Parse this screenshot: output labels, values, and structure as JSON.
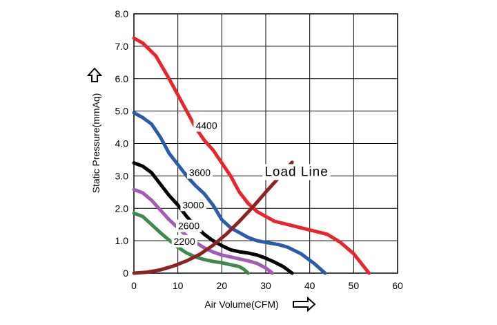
{
  "chart_data": {
    "type": "line",
    "xlabel": "Air Volume(CFM)",
    "ylabel": "Static Pressure(mmAq)",
    "xlim": [
      0,
      60
    ],
    "ylim": [
      0,
      8
    ],
    "x_ticks": [
      "0",
      "10",
      "20",
      "30",
      "40",
      "50",
      "60"
    ],
    "y_ticks": [
      "0",
      "1.0",
      "2.0",
      "3.0",
      "4.0",
      "5.0",
      "6.0",
      "7.0",
      "8.0"
    ],
    "grid": true,
    "series": [
      {
        "name": "4400",
        "color": "#e8262a",
        "points": [
          [
            0,
            7.25
          ],
          [
            2,
            7.1
          ],
          [
            5,
            6.7
          ],
          [
            8,
            6.0
          ],
          [
            10,
            5.5
          ],
          [
            12,
            5.0
          ],
          [
            14,
            4.5
          ],
          [
            16,
            4.1
          ],
          [
            18,
            3.8
          ],
          [
            20,
            3.4
          ],
          [
            22,
            3.0
          ],
          [
            24,
            2.5
          ],
          [
            26,
            2.15
          ],
          [
            28,
            1.9
          ],
          [
            30,
            1.75
          ],
          [
            32,
            1.6
          ],
          [
            35,
            1.5
          ],
          [
            38,
            1.4
          ],
          [
            41,
            1.3
          ],
          [
            44,
            1.2
          ],
          [
            47,
            0.95
          ],
          [
            50,
            0.6
          ],
          [
            53.5,
            0.0
          ]
        ]
      },
      {
        "name": "3600",
        "color": "#2a5cab",
        "points": [
          [
            0,
            4.95
          ],
          [
            2,
            4.8
          ],
          [
            4,
            4.6
          ],
          [
            6,
            4.2
          ],
          [
            8,
            3.7
          ],
          [
            10,
            3.35
          ],
          [
            12,
            3.0
          ],
          [
            14,
            2.7
          ],
          [
            16,
            2.45
          ],
          [
            18,
            2.1
          ],
          [
            20,
            1.65
          ],
          [
            22,
            1.4
          ],
          [
            24,
            1.25
          ],
          [
            26,
            1.1
          ],
          [
            28,
            1.0
          ],
          [
            30,
            0.95
          ],
          [
            33,
            0.88
          ],
          [
            35,
            0.8
          ],
          [
            38,
            0.6
          ],
          [
            41,
            0.3
          ],
          [
            43.5,
            0.0
          ]
        ]
      },
      {
        "name": "3000",
        "color": "#000000",
        "points": [
          [
            0,
            3.4
          ],
          [
            2,
            3.3
          ],
          [
            4,
            3.1
          ],
          [
            6,
            2.75
          ],
          [
            8,
            2.4
          ],
          [
            10,
            2.1
          ],
          [
            12,
            1.75
          ],
          [
            14,
            1.45
          ],
          [
            16,
            1.2
          ],
          [
            18,
            1.0
          ],
          [
            20,
            0.85
          ],
          [
            22,
            0.72
          ],
          [
            24,
            0.66
          ],
          [
            26,
            0.62
          ],
          [
            28,
            0.56
          ],
          [
            30,
            0.46
          ],
          [
            32,
            0.34
          ],
          [
            34,
            0.2
          ],
          [
            36,
            0.0
          ]
        ]
      },
      {
        "name": "2600",
        "color": "#a35bb5",
        "points": [
          [
            0,
            2.58
          ],
          [
            2,
            2.48
          ],
          [
            4,
            2.25
          ],
          [
            6,
            1.95
          ],
          [
            8,
            1.65
          ],
          [
            10,
            1.4
          ],
          [
            12,
            1.15
          ],
          [
            14,
            0.95
          ],
          [
            16,
            0.78
          ],
          [
            18,
            0.65
          ],
          [
            20,
            0.56
          ],
          [
            22,
            0.5
          ],
          [
            24,
            0.44
          ],
          [
            26,
            0.38
          ],
          [
            28,
            0.3
          ],
          [
            30,
            0.16
          ],
          [
            31.5,
            0.0
          ]
        ]
      },
      {
        "name": "2200",
        "color": "#3e8a4e",
        "points": [
          [
            0,
            1.85
          ],
          [
            2,
            1.75
          ],
          [
            4,
            1.5
          ],
          [
            6,
            1.25
          ],
          [
            8,
            1.02
          ],
          [
            10,
            0.8
          ],
          [
            12,
            0.62
          ],
          [
            14,
            0.5
          ],
          [
            16,
            0.42
          ],
          [
            18,
            0.36
          ],
          [
            20,
            0.32
          ],
          [
            22,
            0.26
          ],
          [
            24,
            0.2
          ],
          [
            25,
            0.12
          ],
          [
            26,
            0.0
          ]
        ]
      },
      {
        "name": "Load Line",
        "color": "#8b2323",
        "points": [
          [
            0,
            0.0
          ],
          [
            3,
            0.03
          ],
          [
            6,
            0.1
          ],
          [
            9,
            0.22
          ],
          [
            12,
            0.38
          ],
          [
            15,
            0.58
          ],
          [
            18,
            0.86
          ],
          [
            21,
            1.2
          ],
          [
            24,
            1.6
          ],
          [
            27,
            2.03
          ],
          [
            30,
            2.5
          ],
          [
            33,
            2.95
          ],
          [
            36,
            3.42
          ]
        ]
      }
    ],
    "curve_labels": [
      {
        "text": "4400",
        "at": [
          16.5,
          4.45
        ]
      },
      {
        "text": "3600",
        "at": [
          15,
          3.0
        ]
      },
      {
        "text": "3000",
        "at": [
          13.5,
          2.0
        ]
      },
      {
        "text": "2600",
        "at": [
          12.5,
          1.35
        ]
      },
      {
        "text": "2200",
        "at": [
          11.5,
          0.88
        ]
      },
      {
        "text": "Load Line",
        "at": [
          37,
          3.0
        ]
      }
    ],
    "arrows": {
      "y_axis": "up-arrow-icon",
      "x_axis": "right-arrow-icon"
    }
  }
}
